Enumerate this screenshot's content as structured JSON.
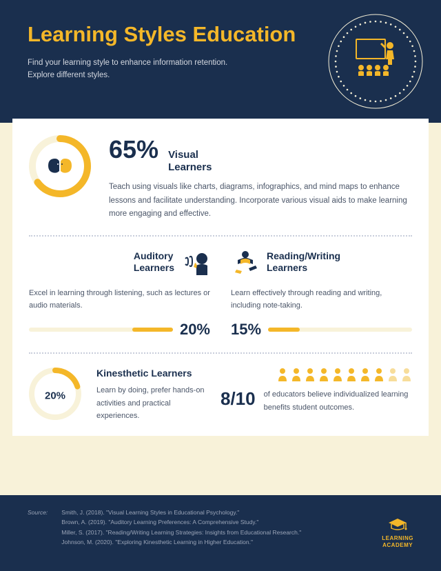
{
  "colors": {
    "navy": "#1a2f4e",
    "amber": "#f4b729",
    "cream": "#f8f2d9",
    "lightAmber": "#f7dd9a",
    "text": "#4a5568",
    "dotBorder": "#c8cddb"
  },
  "header": {
    "title": "Learning Styles Education",
    "subtitle": "Find your learning style to enhance information retention. Explore different styles."
  },
  "visual": {
    "percent": 65,
    "percent_label": "65%",
    "title": "Visual Learners",
    "body": "Teach using visuals like charts, diagrams, infographics, and mind maps to enhance lessons and facilitate understanding. Incorporate various visual aids to make learning more engaging and effective.",
    "donut": {
      "size": 90,
      "stroke": 10,
      "bg": "#f8f2d9",
      "fg": "#f4b729"
    }
  },
  "auditory": {
    "title": "Auditory Learners",
    "body": "Excel in learning through listening, such as lectures or audio materials.",
    "percent": 20,
    "percent_label": "20%",
    "bar_fill_pct": 28
  },
  "reading": {
    "title": "Reading/Writing Learners",
    "body": "Learn effectively through reading and writing, including note-taking.",
    "percent": 15,
    "percent_label": "15%",
    "bar_fill_pct": 22
  },
  "kinesthetic": {
    "title": "Kinesthetic Learners",
    "body": "Learn by doing, prefer hands-on activities and practical experiences.",
    "percent": 20,
    "percent_label": "20%",
    "donut": {
      "size": 76,
      "stroke": 8,
      "bg": "#f8f2d9",
      "fg": "#f4b729"
    }
  },
  "educators": {
    "ratio": "8/10",
    "text": "of educators believe individualized learning benefits student outcomes.",
    "people": {
      "total": 10,
      "filled": 8,
      "color_on": "#f4b729",
      "color_off": "#f7dd9a"
    }
  },
  "source": {
    "label": "Source:",
    "lines": [
      "Smith, J. (2018). \"Visual Learning Styles in Educational Psychology.\"",
      "Brown, A. (2019). \"Auditory Learning Preferences: A Comprehensive Study.\"",
      "Miller, S. (2017). \"Reading/Writing Learning Strategies: Insights from Educational Research.\"",
      "Johnson, M. (2020). \"Exploring Kinesthetic Learning in Higher Education.\""
    ]
  },
  "brand": {
    "line1": "LEARNING",
    "line2": "ACADEMY"
  }
}
